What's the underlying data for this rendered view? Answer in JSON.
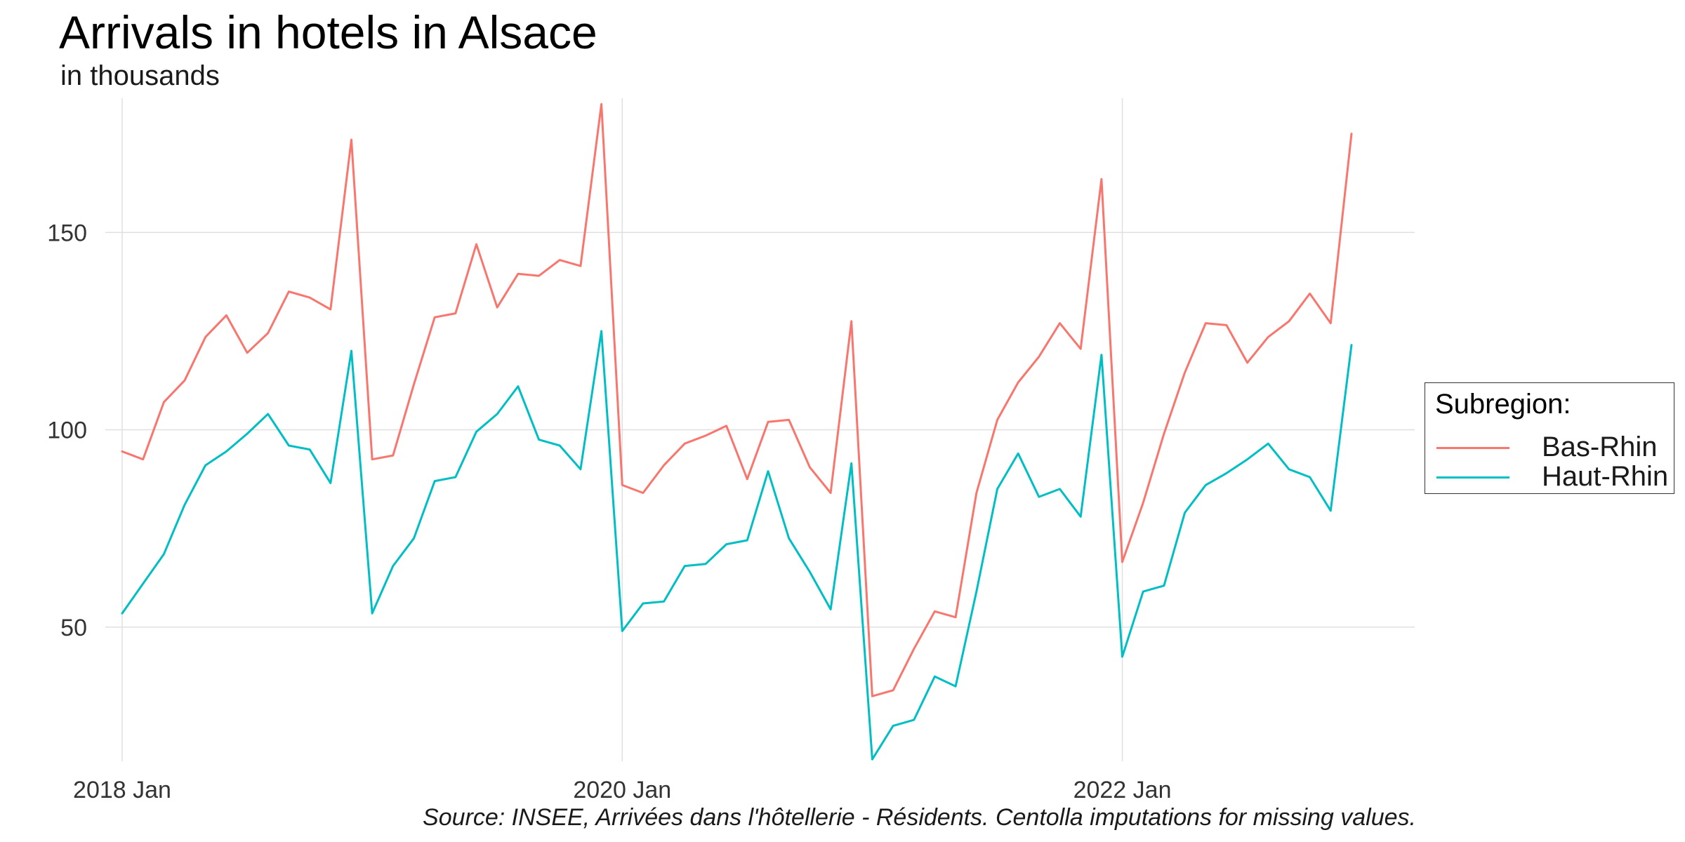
{
  "chart_data": {
    "type": "line",
    "title": "Arrivals in hotels in Alsace",
    "subtitle": "in thousands",
    "caption": "Source: INSEE, Arrivées dans l'hôtellerie - Résidents. Centolla imputations for missing values.",
    "xlabel": "",
    "ylabel": "",
    "x": [
      "2018-01",
      "2018-02",
      "2018-03",
      "2018-04",
      "2018-05",
      "2018-06",
      "2018-07",
      "2018-08",
      "2018-09",
      "2018-10",
      "2018-11",
      "2018-12",
      "2019-01",
      "2019-02",
      "2019-03",
      "2019-04",
      "2019-05",
      "2019-06",
      "2019-07",
      "2019-08",
      "2019-09",
      "2019-10",
      "2019-11",
      "2019-12",
      "2020-01",
      "2020-02",
      "2020-03",
      "2020-04",
      "2020-05",
      "2020-06",
      "2020-07",
      "2020-08",
      "2020-09",
      "2020-10",
      "2020-11",
      "2020-12",
      "2021-01",
      "2021-02",
      "2021-03",
      "2021-04",
      "2021-05",
      "2021-06",
      "2021-07",
      "2021-08",
      "2021-09",
      "2021-10",
      "2021-11",
      "2021-12",
      "2022-01",
      "2022-02",
      "2022-03",
      "2022-04",
      "2022-05",
      "2022-06",
      "2022-07",
      "2022-08",
      "2022-09",
      "2022-10",
      "2022-11",
      "2022-12"
    ],
    "x_ticks": [
      "2018 Jan",
      "2020 Jan",
      "2022 Jan"
    ],
    "x_tick_positions": [
      "2018-01",
      "2020-01",
      "2022-01"
    ],
    "y_ticks": [
      50,
      100,
      150
    ],
    "ylim": [
      16,
      184
    ],
    "grid": true,
    "legend": {
      "title": "Subregion:",
      "position": "right"
    },
    "series": [
      {
        "name": "Bas-Rhin",
        "color": "#F8766D",
        "values": [
          94.5,
          92.5,
          107,
          112.5,
          123.5,
          129,
          119.5,
          124.5,
          135,
          133.5,
          130.5,
          173.5,
          92.5,
          93.5,
          111.5,
          128.5,
          129.5,
          147,
          131,
          139.5,
          139,
          143,
          141.5,
          182.5,
          86,
          84,
          91,
          96.5,
          98.5,
          101,
          87.5,
          102,
          102.5,
          90.5,
          84,
          127.5,
          32.5,
          34,
          44.5,
          54,
          52.5,
          84,
          102.5,
          112,
          118.5,
          127,
          120.5,
          163.5,
          66.5,
          81.5,
          99,
          114.5,
          127,
          126.5,
          117,
          123.5,
          127.5,
          134.5,
          127,
          175
        ]
      },
      {
        "name": "Haut-Rhin",
        "color": "#00BFC4",
        "values": [
          53.5,
          61,
          68.5,
          81,
          91,
          94.5,
          99,
          104,
          96,
          95,
          86.5,
          120,
          53.5,
          65.5,
          72.5,
          87,
          88,
          99.5,
          104,
          111,
          97.5,
          96,
          90,
          125,
          49,
          56,
          56.5,
          65.5,
          66,
          71,
          72,
          89.5,
          72.5,
          64,
          54.5,
          91.5,
          16.5,
          25,
          26.5,
          37.5,
          35,
          59,
          85,
          94,
          83,
          85,
          78,
          119,
          42.5,
          59,
          60.5,
          79,
          86,
          89,
          92.5,
          96.5,
          90,
          88,
          79.5,
          121.5
        ]
      }
    ]
  }
}
